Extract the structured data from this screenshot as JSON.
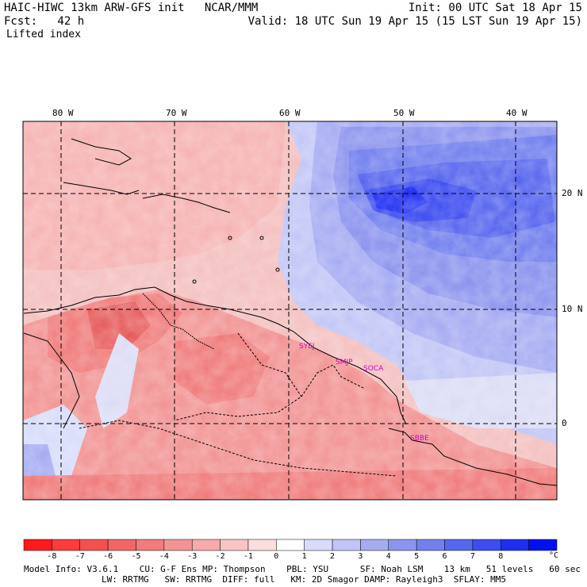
{
  "header": {
    "model_line": "HAIC-HIWC 13km ARW-GFS init   NCAR/MMM",
    "init_line": "Init: 00 UTC Sat 18 Apr 15",
    "fcst_line": "Fcst:   42 h",
    "valid_line": "Valid: 18 UTC Sun 19 Apr 15 (15 LST Sun 19 Apr 15)",
    "field_name": "Lifted index"
  },
  "map": {
    "longitude_labels": [
      "80 W",
      "70 W",
      "60 W",
      "50 W",
      "40 W"
    ],
    "latitude_labels": [
      "20 N",
      "10 N",
      "0"
    ],
    "stations": [
      "SYEJ",
      "SMJP",
      "SOCA",
      "SBBE"
    ]
  },
  "colorbar": {
    "ticks": [
      "-8",
      "-7",
      "-6",
      "-5",
      "-4",
      "-3",
      "-2",
      "-1",
      "0",
      "1",
      "2",
      "3",
      "4",
      "5",
      "6",
      "7",
      "8"
    ],
    "unit": "°C",
    "colors": [
      "#ff1a1a",
      "#ff3a3a",
      "#f55050",
      "#f06666",
      "#f07c7c",
      "#f29494",
      "#f6aaaa",
      "#f8c4c4",
      "#fbdede",
      "#ffffff",
      "#d8dcfa",
      "#c0c4f6",
      "#a6acf2",
      "#8c94ee",
      "#7280ee",
      "#5766ee",
      "#3c4cf0",
      "#1f2ef2",
      "#0010f0"
    ]
  },
  "footer": {
    "line1": "Model Info: V3.6.1    CU: G-F Ens MP: Thompson    PBL: YSU      SF: Noah LSM    13 km   51 levels   60 sec",
    "line2": "LW: RRTMG   SW: RRTMG  DIFF: full   KM: 2D Smagor DAMP: Rayleigh3  SFLAY: MM5"
  }
}
